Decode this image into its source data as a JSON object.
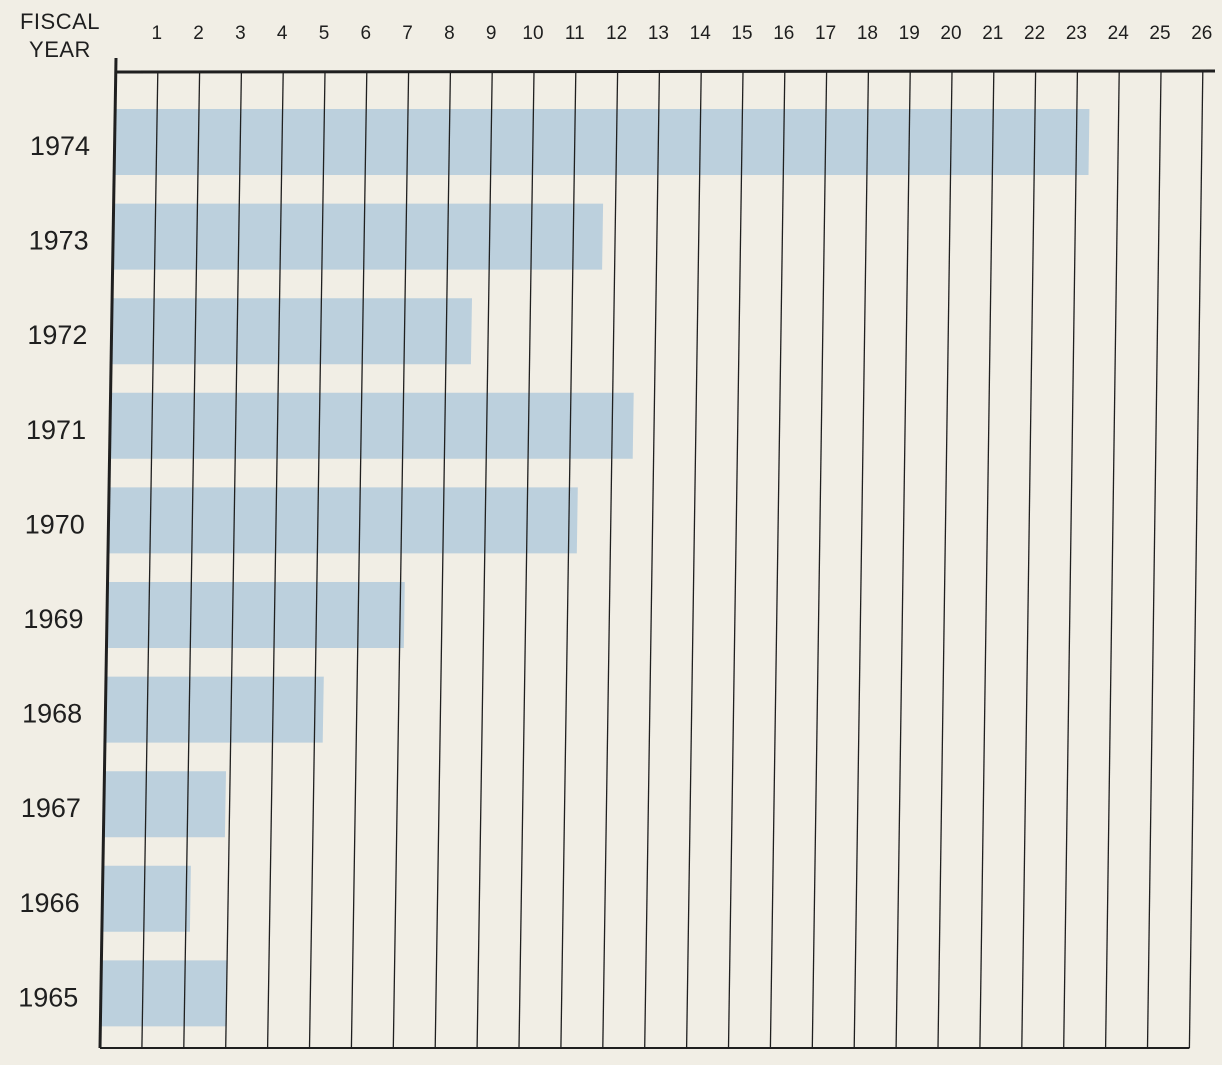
{
  "chart_data": {
    "type": "bar",
    "orientation": "horizontal",
    "ylabel_lines": [
      "FISCAL",
      "YEAR"
    ],
    "categories": [
      "1974",
      "1973",
      "1972",
      "1971",
      "1970",
      "1969",
      "1968",
      "1967",
      "1966",
      "1965"
    ],
    "values": [
      23.3,
      11.7,
      8.6,
      12.5,
      11.2,
      7.1,
      5.2,
      2.9,
      2.1,
      3.0
    ],
    "x_ticks": [
      "1",
      "2",
      "3",
      "4",
      "5",
      "6",
      "7",
      "8",
      "9",
      "10",
      "11",
      "12",
      "13",
      "14",
      "15",
      "16",
      "17",
      "18",
      "19",
      "20",
      "21",
      "22",
      "23",
      "24",
      "25",
      "26"
    ],
    "xlim": [
      0,
      26
    ],
    "grid": true,
    "colors": {
      "bar": "#bcd0dd",
      "axis": "#1f1f1f",
      "grid": "#1f1f1f",
      "background": "#f1eee5"
    }
  }
}
